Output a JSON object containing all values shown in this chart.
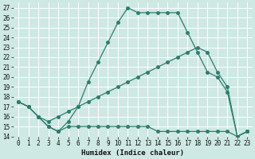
{
  "xlabel": "Humidex (Indice chaleur)",
  "xlim": [
    -0.5,
    23.5
  ],
  "ylim": [
    14,
    27.5
  ],
  "xticks": [
    0,
    1,
    2,
    3,
    4,
    5,
    6,
    7,
    8,
    9,
    10,
    11,
    12,
    13,
    14,
    15,
    16,
    17,
    18,
    19,
    20,
    21,
    22,
    23
  ],
  "yticks": [
    14,
    15,
    16,
    17,
    18,
    19,
    20,
    21,
    22,
    23,
    24,
    25,
    26,
    27
  ],
  "bg_color": "#cee8e4",
  "line_color": "#2e7d6e",
  "grid_color": "#ffffff",
  "curve1_x": [
    0,
    1,
    2,
    3,
    4,
    5,
    6,
    7,
    8,
    9,
    10,
    11,
    12,
    13,
    14,
    15,
    16,
    17,
    18,
    19,
    20,
    21,
    22,
    23
  ],
  "curve1_y": [
    17.5,
    17,
    16,
    15,
    14.5,
    15.5,
    17,
    19.5,
    21.5,
    23.5,
    25.5,
    27,
    26.5,
    26.5,
    26.5,
    26.5,
    26.5,
    24.5,
    22.5,
    20.5,
    20,
    18.5,
    14,
    14.5
  ],
  "curve2_x": [
    0,
    1,
    2,
    3,
    4,
    5,
    6,
    7,
    8,
    9,
    10,
    11,
    12,
    13,
    14,
    15,
    16,
    17,
    18,
    19,
    20,
    21,
    22,
    23
  ],
  "curve2_y": [
    17.5,
    17,
    16,
    15,
    14.5,
    15,
    15,
    15,
    15,
    15,
    15,
    15,
    15,
    15,
    14.5,
    14.5,
    14.5,
    14.5,
    14.5,
    14.5,
    14.5,
    14.5,
    14,
    14.5
  ],
  "curve3_x": [
    0,
    1,
    2,
    3,
    4,
    5,
    6,
    7,
    8,
    9,
    10,
    11,
    12,
    13,
    14,
    15,
    16,
    17,
    18,
    19,
    20,
    21,
    22,
    23
  ],
  "curve3_y": [
    17.5,
    17,
    16,
    15.5,
    16,
    16.5,
    17,
    17.5,
    18,
    18.5,
    19,
    19.5,
    20,
    20.5,
    21,
    21.5,
    22,
    22.5,
    23,
    22.5,
    20.5,
    19,
    14,
    14.5
  ],
  "tick_fontsize": 5.5,
  "xlabel_fontsize": 6.5,
  "marker_size": 2.5,
  "line_width": 0.9
}
